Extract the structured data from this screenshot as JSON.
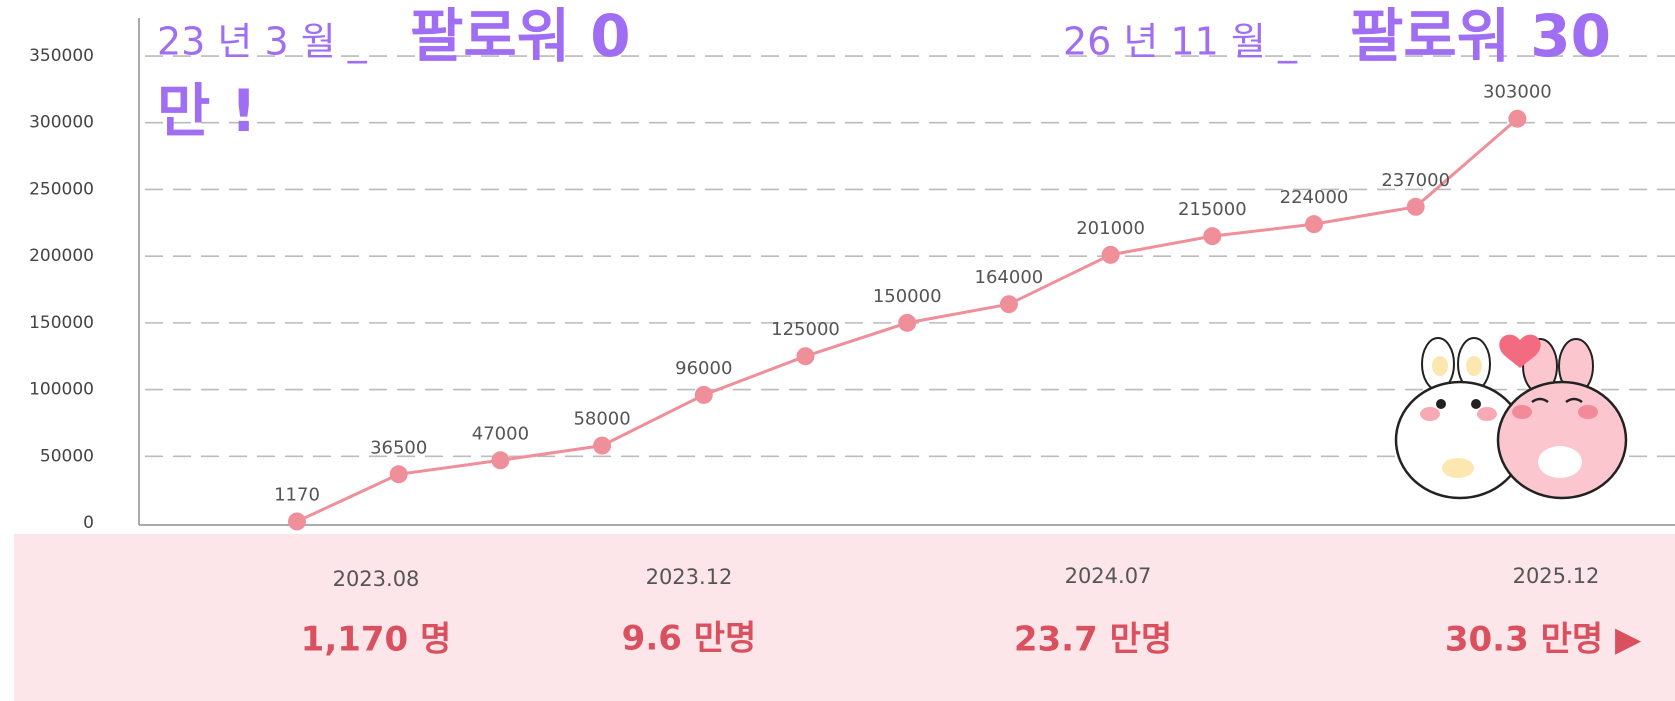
{
  "chart_data": {
    "type": "line",
    "categories": [
      null,
      null,
      null,
      null,
      null,
      null,
      null,
      null,
      null,
      null,
      null,
      null,
      null
    ],
    "values": [
      1170,
      36500,
      47000,
      58000,
      96000,
      125000,
      150000,
      164000,
      201000,
      215000,
      224000,
      237000,
      303000
    ],
    "color": "#ef8f9a",
    "ylim": [
      0,
      380000
    ],
    "yticks": [
      0,
      50000,
      100000,
      150000,
      200000,
      250000,
      300000,
      350000
    ],
    "grid": true
  },
  "headlines": [
    {
      "date": "23 년 3 월 _",
      "followers": "팔로워  0",
      "tail": "만 !"
    },
    {
      "date": "26 년 11 월 _",
      "followers": "팔로워  30"
    }
  ],
  "milestones": [
    {
      "date": "2023.08",
      "count": "1,170 명"
    },
    {
      "date": "2023.12",
      "count": "9.6 만명"
    },
    {
      "date": "2024.07",
      "count": "23.7 만명"
    },
    {
      "date": "2025.12",
      "count": "30.3 만명 ▶"
    }
  ]
}
